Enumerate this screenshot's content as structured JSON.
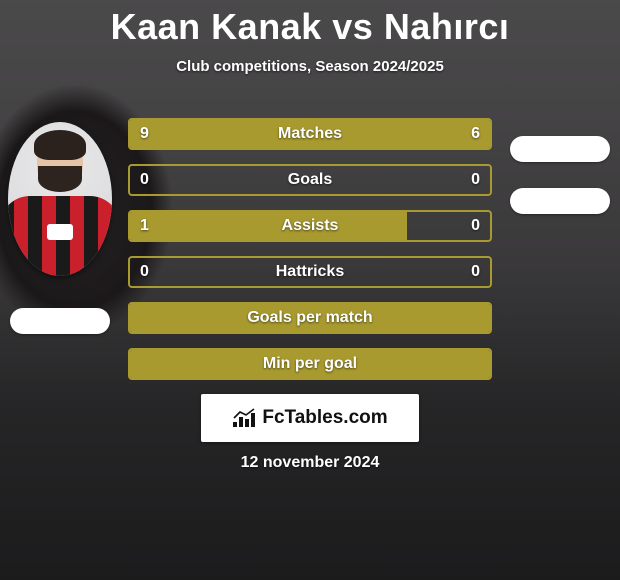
{
  "title": {
    "player1": "Kaan Kanak",
    "vs": "vs",
    "player2": "Nahırcı"
  },
  "subtitle": "Club competitions, Season 2024/2025",
  "colors": {
    "bar_fill": "#a89a2f",
    "bar_border": "#a89a2f",
    "bar_empty": "rgba(0,0,0,0)",
    "brand_bg": "#ffffff"
  },
  "players": {
    "left": {
      "has_photo": true
    },
    "right": {
      "has_photo": false
    }
  },
  "stats": [
    {
      "label": "Matches",
      "left_value": "9",
      "right_value": "6",
      "left_pct": 60,
      "right_pct": 40,
      "show_values": true
    },
    {
      "label": "Goals",
      "left_value": "0",
      "right_value": "0",
      "left_pct": 0,
      "right_pct": 0,
      "show_values": true
    },
    {
      "label": "Assists",
      "left_value": "1",
      "right_value": "0",
      "left_pct": 77,
      "right_pct": 0,
      "show_values": true
    },
    {
      "label": "Hattricks",
      "left_value": "0",
      "right_value": "0",
      "left_pct": 0,
      "right_pct": 0,
      "show_values": true
    },
    {
      "label": "Goals per match",
      "left_value": "",
      "right_value": "",
      "left_pct": 100,
      "right_pct": 0,
      "show_values": false
    },
    {
      "label": "Min per goal",
      "left_value": "",
      "right_value": "",
      "left_pct": 100,
      "right_pct": 0,
      "show_values": false
    }
  ],
  "brand": "FcTables.com",
  "date": "12 november 2024"
}
